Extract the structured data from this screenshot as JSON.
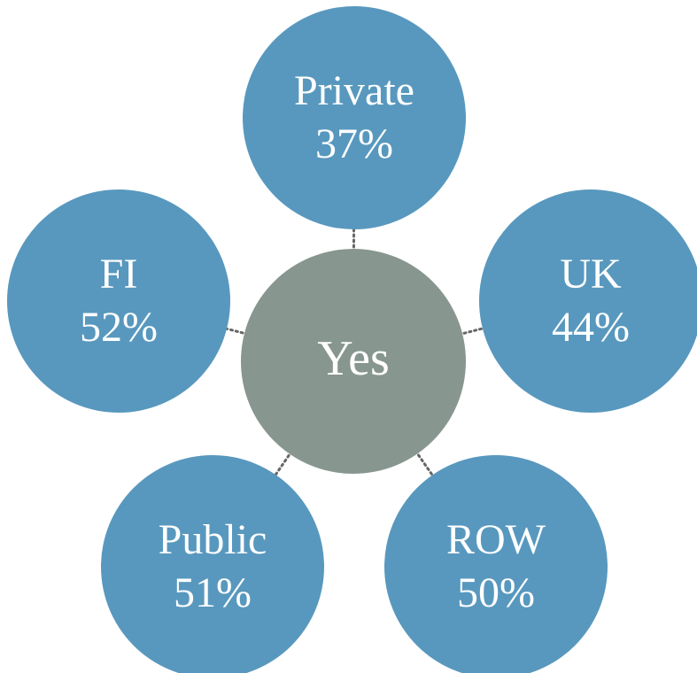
{
  "center": {
    "label": "Yes"
  },
  "nodes": [
    {
      "label": "Private",
      "value": "37%"
    },
    {
      "label": "UK",
      "value": "44%"
    },
    {
      "label": "ROW",
      "value": "50%"
    },
    {
      "label": "Public",
      "value": "51%"
    },
    {
      "label": "FI",
      "value": "52%"
    }
  ]
}
